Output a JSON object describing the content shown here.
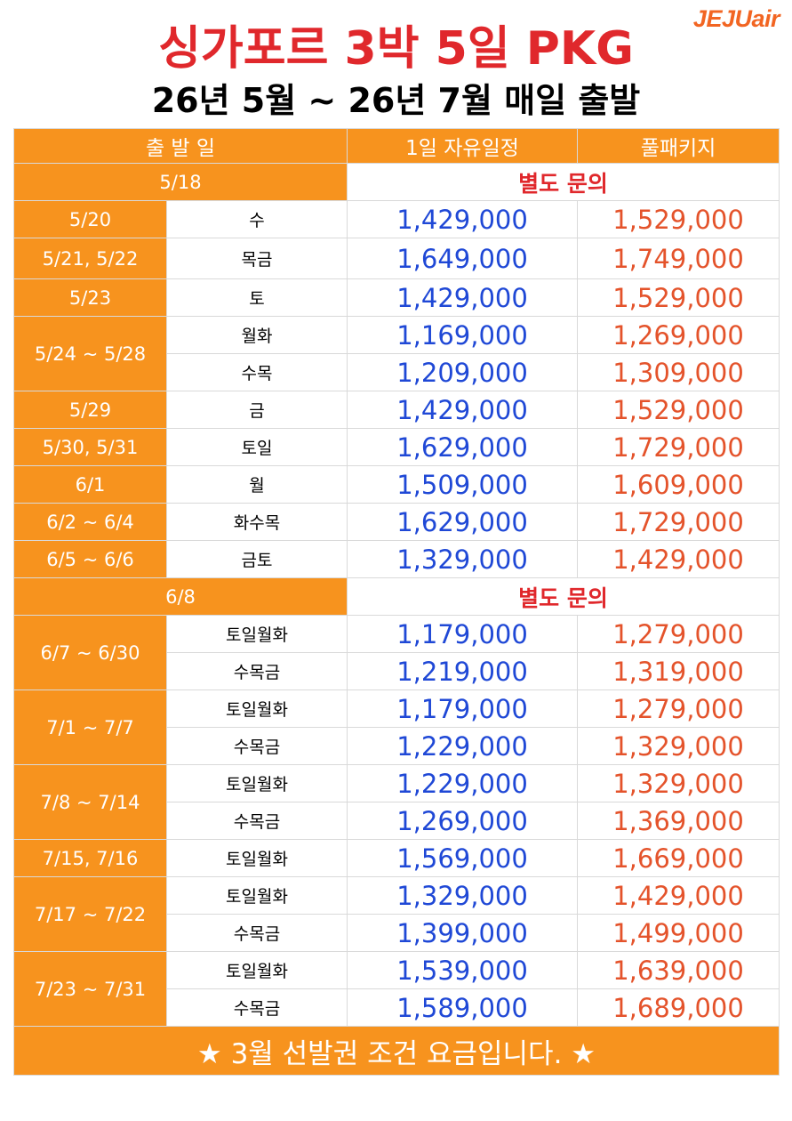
{
  "brand": {
    "logo_text": "JEJUair",
    "color": "#f26522"
  },
  "title": "싱가포르 3박 5일 PKG",
  "subtitle": "26년 5월 ~ 26년 7월 매일 출발",
  "colors": {
    "header_bg": "#f7931e",
    "free_price": "#1f48d6",
    "full_price": "#e4532b",
    "inquiry": "#e0282c"
  },
  "table": {
    "headers": {
      "departure": "출 발 일",
      "free_day": "1일 자유일정",
      "full_package": "풀패키지"
    },
    "inquiry_text": "별도 문의",
    "rows": [
      {
        "date": "5/18",
        "inquiry": "별도 문의"
      },
      {
        "date": "5/20",
        "day": "수",
        "free": "1,429,000",
        "full": "1,529,000"
      },
      {
        "date": "5/21, 5/22",
        "day": "목금",
        "free": "1,649,000",
        "full": "1,749,000"
      },
      {
        "date": "5/23",
        "day": "토",
        "free": "1,429,000",
        "full": "1,529,000"
      },
      {
        "date": "5/24 ~ 5/28",
        "day": "월화",
        "free": "1,169,000",
        "full": "1,269,000"
      },
      {
        "day": "수목",
        "free": "1,209,000",
        "full": "1,309,000"
      },
      {
        "date": "5/29",
        "day": "금",
        "free": "1,429,000",
        "full": "1,529,000"
      },
      {
        "date": "5/30, 5/31",
        "day": "토일",
        "free": "1,629,000",
        "full": "1,729,000"
      },
      {
        "date": "6/1",
        "day": "월",
        "free": "1,509,000",
        "full": "1,609,000"
      },
      {
        "date": "6/2 ~ 6/4",
        "day": "화수목",
        "free": "1,629,000",
        "full": "1,729,000"
      },
      {
        "date": "6/5 ~ 6/6",
        "day": "금토",
        "free": "1,329,000",
        "full": "1,429,000"
      },
      {
        "date": "6/8",
        "inquiry": "별도 문의"
      },
      {
        "date": "6/7 ~ 6/30",
        "day": "토일월화",
        "free": "1,179,000",
        "full": "1,279,000"
      },
      {
        "day": "수목금",
        "free": "1,219,000",
        "full": "1,319,000"
      },
      {
        "date": "7/1 ~ 7/7",
        "day": "토일월화",
        "free": "1,179,000",
        "full": "1,279,000"
      },
      {
        "day": "수목금",
        "free": "1,229,000",
        "full": "1,329,000"
      },
      {
        "date": "7/8 ~ 7/14",
        "day": "토일월화",
        "free": "1,229,000",
        "full": "1,329,000"
      },
      {
        "day": "수목금",
        "free": "1,269,000",
        "full": "1,369,000"
      },
      {
        "date": "7/15, 7/16",
        "day": "토일월화",
        "free": "1,569,000",
        "full": "1,669,000"
      },
      {
        "date": "7/17 ~ 7/22",
        "day": "토일월화",
        "free": "1,329,000",
        "full": "1,429,000"
      },
      {
        "day": "수목금",
        "free": "1,399,000",
        "full": "1,499,000"
      },
      {
        "date": "7/23 ~ 7/31",
        "day": "토일월화",
        "free": "1,539,000",
        "full": "1,639,000"
      },
      {
        "day": "수목금",
        "free": "1,589,000",
        "full": "1,689,000"
      }
    ]
  },
  "footer": "★ 3월 선발권 조건 요금입니다. ★"
}
